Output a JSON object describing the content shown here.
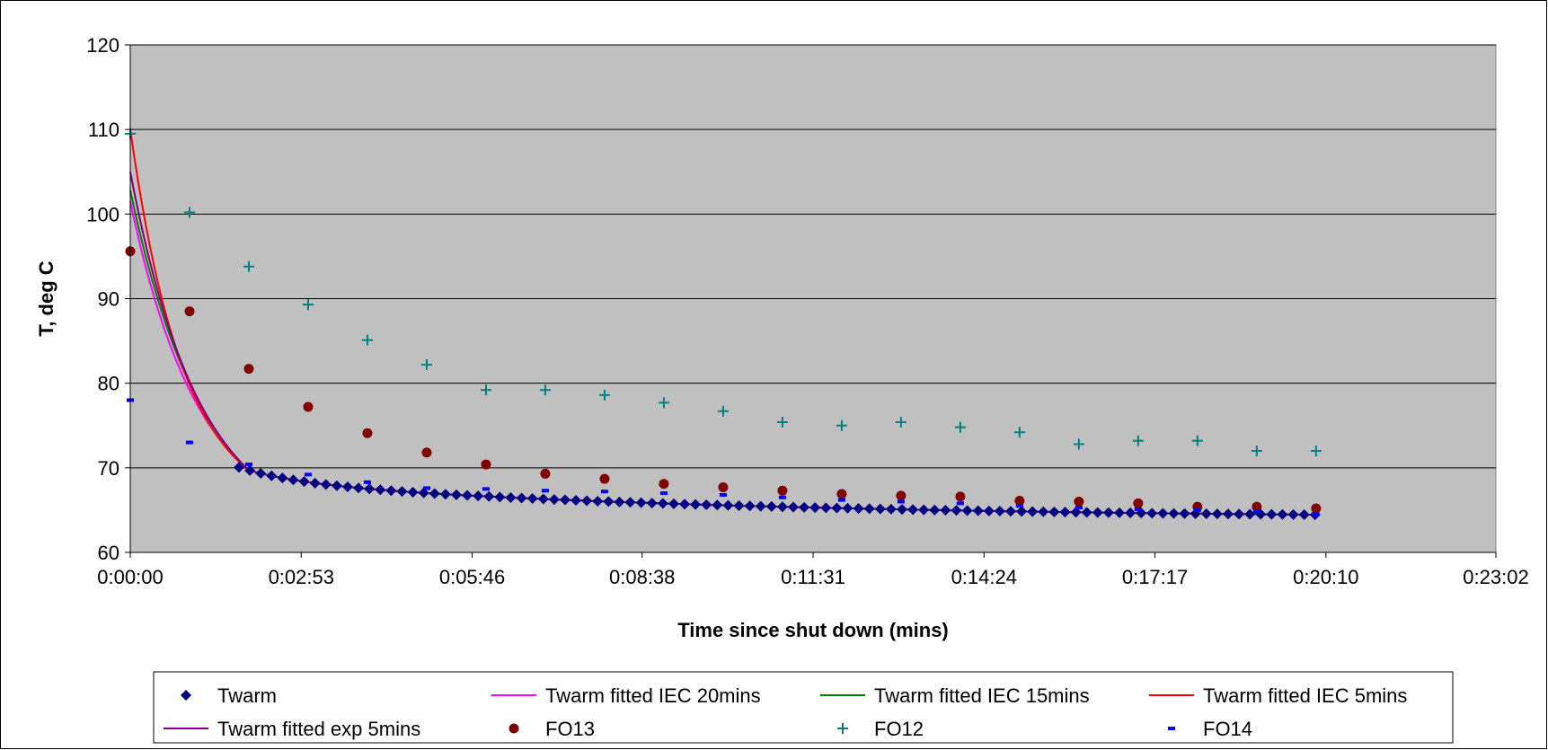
{
  "chart_data": {
    "type": "scatter",
    "title": "",
    "xlabel": "Time since shut down (mins)",
    "ylabel": "T, deg C",
    "x_units": "seconds (axis labels shown as h:mm:ss)",
    "xlim": [
      0,
      1382
    ],
    "ylim": [
      60,
      120
    ],
    "x_ticks": [
      {
        "value": 0,
        "label": "0:00:00"
      },
      {
        "value": 173,
        "label": "0:02:53"
      },
      {
        "value": 346,
        "label": "0:05:46"
      },
      {
        "value": 518,
        "label": "0:08:38"
      },
      {
        "value": 691,
        "label": "0:11:31"
      },
      {
        "value": 864,
        "label": "0:14:24"
      },
      {
        "value": 1037,
        "label": "0:17:17"
      },
      {
        "value": 1210,
        "label": "0:20:10"
      },
      {
        "value": 1382,
        "label": "0:23:02"
      }
    ],
    "y_ticks": [
      60,
      70,
      80,
      90,
      100,
      110,
      120
    ],
    "grid": "horizontal",
    "plot_background": "#c0c0c0",
    "legend_position": "bottom",
    "series": [
      {
        "name": "Twarm",
        "style": "diamond",
        "color": "#000080"
      },
      {
        "name": "Twarm fitted IEC 20mins",
        "style": "line",
        "color": "#ff00ff"
      },
      {
        "name": "Twarm fitted IEC 15mins",
        "style": "line",
        "color": "#008000"
      },
      {
        "name": "Twarm fitted IEC 5mins",
        "style": "line",
        "color": "#ff0000"
      },
      {
        "name": "Twarm fitted exp 5mins",
        "style": "line",
        "color": "#800080"
      },
      {
        "name": "FO13",
        "style": "circle",
        "color": "#800000",
        "x": [
          0,
          60,
          120,
          180,
          240,
          300,
          360,
          420,
          480,
          540,
          600,
          660,
          720,
          780,
          840,
          900,
          960,
          1020,
          1080,
          1140,
          1200
        ],
        "y": [
          95.6,
          88.5,
          81.7,
          77.2,
          74.1,
          71.8,
          70.4,
          69.3,
          68.7,
          68.1,
          67.7,
          67.3,
          66.9,
          66.7,
          66.6,
          66.1,
          66.0,
          65.8,
          65.4,
          65.4,
          65.2
        ]
      },
      {
        "name": "FO12",
        "style": "plus",
        "color": "#008080",
        "x": [
          0,
          60,
          120,
          180,
          240,
          300,
          360,
          420,
          480,
          540,
          600,
          660,
          720,
          780,
          840,
          900,
          960,
          1020,
          1080,
          1140,
          1200
        ],
        "y": [
          109.5,
          100.2,
          93.8,
          89.3,
          85.1,
          82.2,
          79.2,
          79.2,
          78.6,
          77.7,
          76.7,
          75.4,
          75.0,
          75.4,
          74.8,
          74.2,
          72.8,
          73.2,
          73.2,
          72.0,
          72.0
        ]
      },
      {
        "name": "FO14",
        "style": "dash",
        "color": "#0000ff",
        "x": [
          0,
          60,
          120,
          180,
          240,
          300,
          360,
          420,
          480,
          540,
          600,
          660,
          720,
          780,
          840,
          900,
          960,
          1020,
          1080,
          1140,
          1200
        ],
        "y": [
          78.0,
          73.0,
          70.4,
          69.2,
          68.3,
          67.6,
          67.5,
          67.3,
          67.2,
          67.0,
          66.8,
          66.5,
          66.2,
          66.0,
          65.8,
          65.5,
          65.3,
          65.1,
          65.0,
          64.8,
          64.5
        ]
      }
    ]
  }
}
